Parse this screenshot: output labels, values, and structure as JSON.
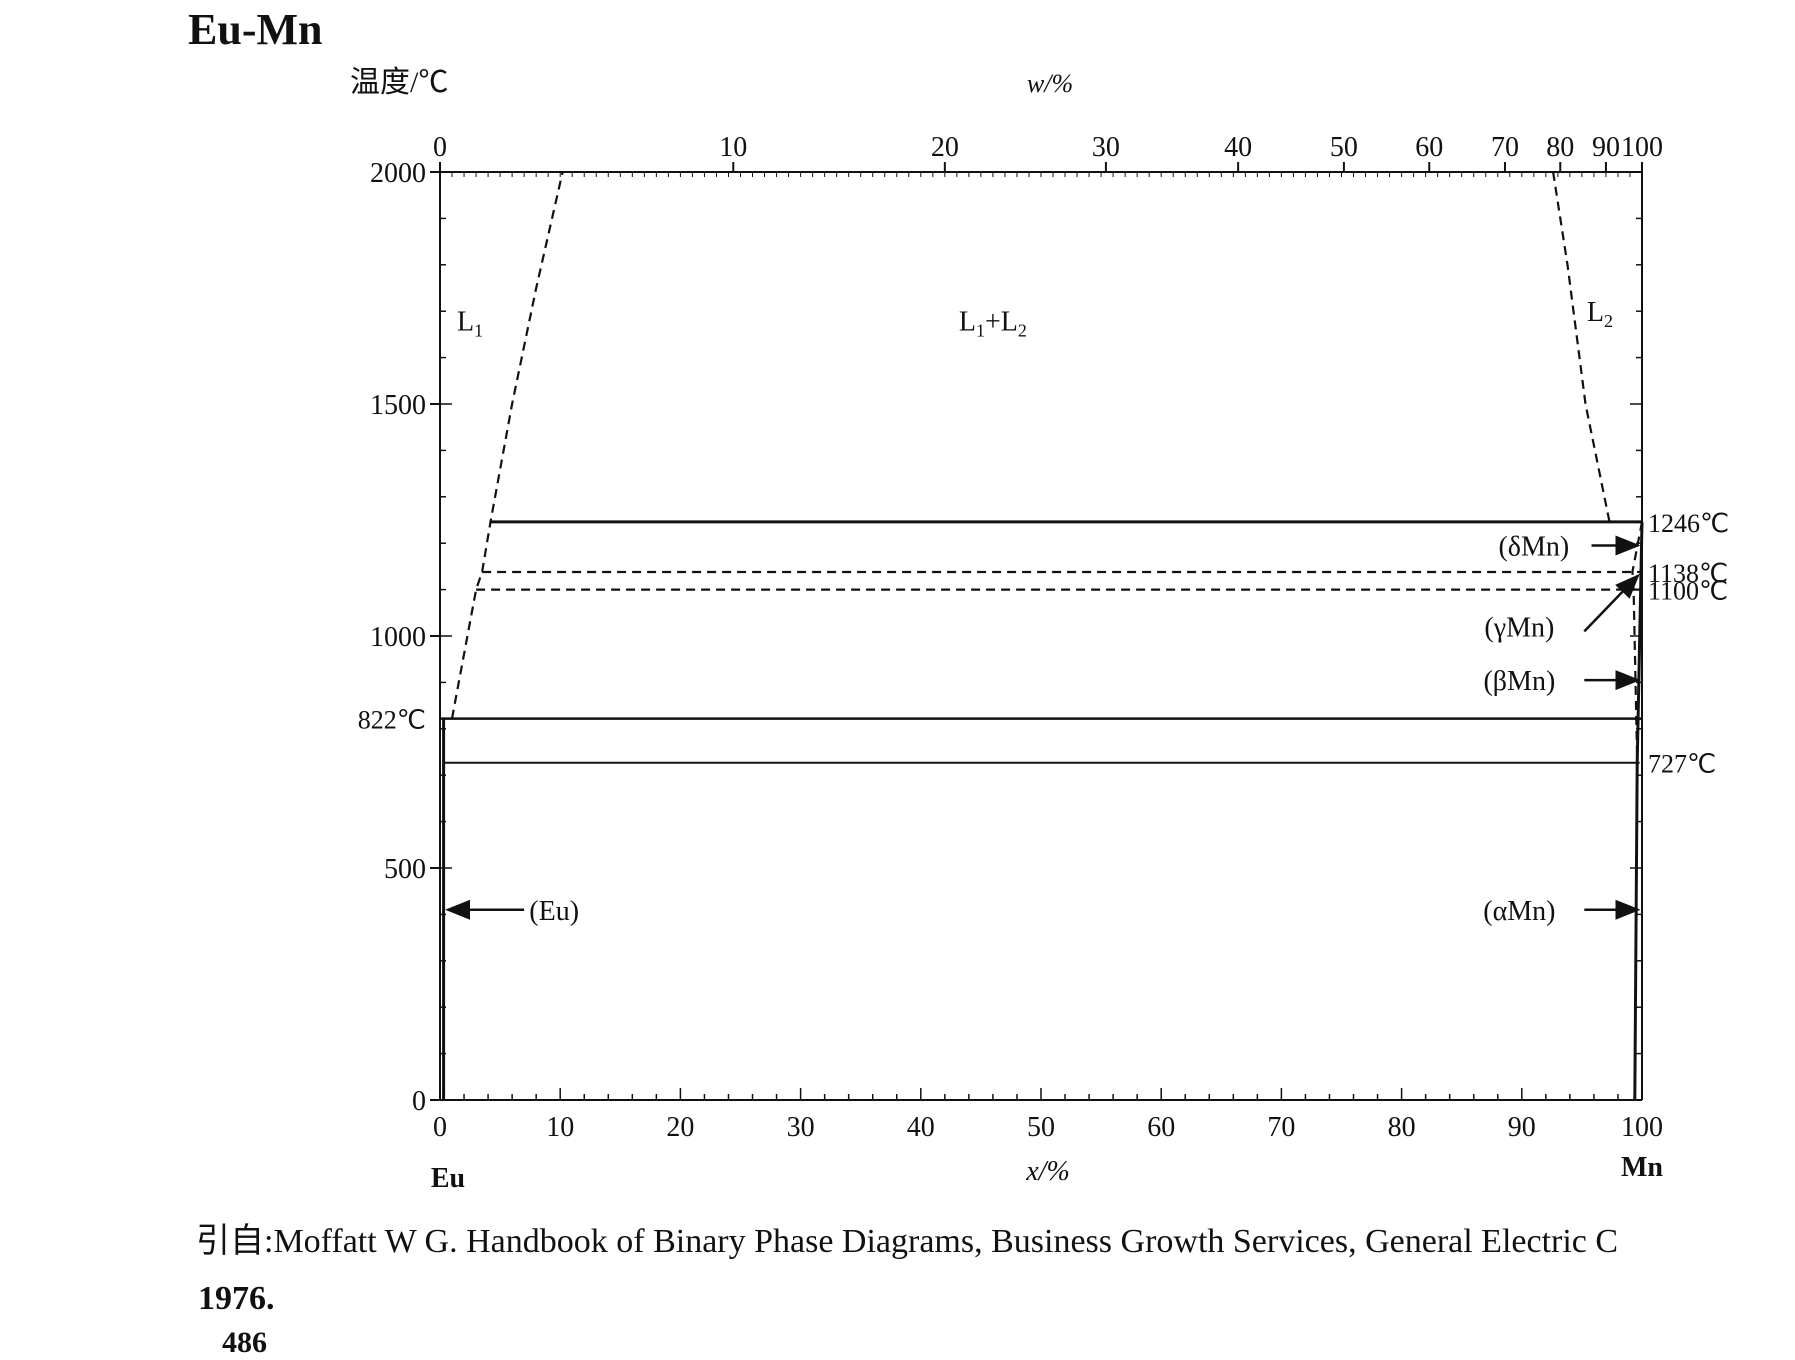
{
  "title": "Eu-Mn",
  "chart_data": {
    "type": "phase-diagram",
    "system": "Eu-Mn",
    "ylabel": "温度/℃",
    "xlabel_top": "w/%",
    "xlabel_bottom": "x/%",
    "ylim": [
      0,
      2000
    ],
    "xlim": [
      0,
      100
    ],
    "yticks": [
      0,
      500,
      1000,
      1500,
      2000
    ],
    "xticks_bottom": [
      0,
      10,
      20,
      30,
      40,
      50,
      60,
      70,
      80,
      90,
      100
    ],
    "xticks_top": [
      {
        "w": 0,
        "x": 0.0
      },
      {
        "w": 10,
        "x": 24.4
      },
      {
        "w": 20,
        "x": 42.0
      },
      {
        "w": 30,
        "x": 55.4
      },
      {
        "w": 40,
        "x": 66.4
      },
      {
        "w": 50,
        "x": 75.2
      },
      {
        "w": 60,
        "x": 82.3
      },
      {
        "w": 70,
        "x": 88.6
      },
      {
        "w": 80,
        "x": 93.2
      },
      {
        "w": 90,
        "x": 97.0
      },
      {
        "w": 100,
        "x": 100.0
      }
    ],
    "end_labels": {
      "left": "Eu",
      "right": "Mn"
    },
    "phase_labels": [
      {
        "label": "L1",
        "main": "L",
        "sub": "1",
        "x": 2.5,
        "y": 1680
      },
      {
        "label": "L1+L2",
        "main": "L+L",
        "x": 46,
        "y": 1680
      },
      {
        "label": "L2",
        "main": "L",
        "sub": "2",
        "x": 96.5,
        "y": 1700
      },
      {
        "label": "(δMn)",
        "x": 91.0,
        "y": 1195
      },
      {
        "label": "(γMn)",
        "x": 89.8,
        "y": 1020
      },
      {
        "label": "(βMn)",
        "x": 89.8,
        "y": 905
      },
      {
        "label": "(αMn)",
        "x": 89.8,
        "y": 410
      },
      {
        "label": "(Eu)",
        "x": 9.5,
        "y": 410
      }
    ],
    "temperature_labels": [
      {
        "label": "822℃",
        "value": 822,
        "side": "left"
      },
      {
        "label": "1246℃",
        "value": 1246,
        "side": "right"
      },
      {
        "label": "1138℃",
        "value": 1138,
        "side": "right"
      },
      {
        "label": "1100℃",
        "value": 1100,
        "side": "right"
      },
      {
        "label": "727℃",
        "value": 727,
        "side": "right"
      }
    ],
    "solid_lines": [
      {
        "name": "monotectic-1246",
        "points": [
          [
            4.2,
            1246
          ],
          [
            100,
            1246
          ]
        ],
        "width": 3
      },
      {
        "name": "eutectic-822",
        "points": [
          [
            0,
            822
          ],
          [
            100,
            822
          ]
        ],
        "width": 2.5
      },
      {
        "name": "eu-axis-solvus",
        "points": [
          [
            0.3,
            0
          ],
          [
            0.3,
            822
          ]
        ],
        "width": 3
      },
      {
        "name": "tie-727",
        "points": [
          [
            0.3,
            727
          ],
          [
            99.8,
            727
          ]
        ],
        "width": 2
      },
      {
        "name": "mn-solvus",
        "points": [
          [
            99.4,
            0
          ],
          [
            99.6,
            727
          ],
          [
            100,
            1246
          ]
        ],
        "width": 3
      }
    ],
    "dashed_lines": [
      {
        "name": "iso-1138",
        "points": [
          [
            3.5,
            1138
          ],
          [
            100,
            1138
          ]
        ]
      },
      {
        "name": "iso-1100",
        "points": [
          [
            3.0,
            1100
          ],
          [
            100,
            1100
          ]
        ]
      },
      {
        "name": "l1-liquidus",
        "points": [
          [
            1.0,
            822
          ],
          [
            3.0,
            1100
          ],
          [
            3.5,
            1138
          ],
          [
            4.2,
            1246
          ],
          [
            6.0,
            1500
          ],
          [
            8.0,
            1750
          ],
          [
            10.2,
            2000
          ]
        ]
      },
      {
        "name": "l2-liquidus",
        "points": [
          [
            92.6,
            2000
          ],
          [
            93.8,
            1800
          ],
          [
            95.3,
            1500
          ],
          [
            97.3,
            1246
          ]
        ]
      },
      {
        "name": "mn-delta-gamma",
        "points": [
          [
            100,
            1246
          ],
          [
            99.2,
            1138
          ],
          [
            99.3,
            1100
          ],
          [
            99.6,
            727
          ]
        ]
      }
    ],
    "arrows": [
      {
        "name": "delta-arrow",
        "from": [
          95.8,
          1195
        ],
        "to": [
          100,
          1195
        ]
      },
      {
        "name": "gamma-arrow",
        "from": [
          95.2,
          1010
        ],
        "to": [
          100,
          1130
        ]
      },
      {
        "name": "beta-arrow",
        "from": [
          95.2,
          905
        ],
        "to": [
          100,
          905
        ]
      },
      {
        "name": "alpha-arrow",
        "from": [
          95.2,
          410
        ],
        "to": [
          100,
          410
        ]
      },
      {
        "name": "eu-arrow",
        "from": [
          7.0,
          410
        ],
        "to": [
          0.3,
          410
        ]
      }
    ]
  },
  "citation": {
    "text": "引自:Moffatt W G. Handbook of Binary Phase Diagrams, Business Growth Services, General Electric C",
    "year": "1976.",
    "page_number": "486"
  }
}
